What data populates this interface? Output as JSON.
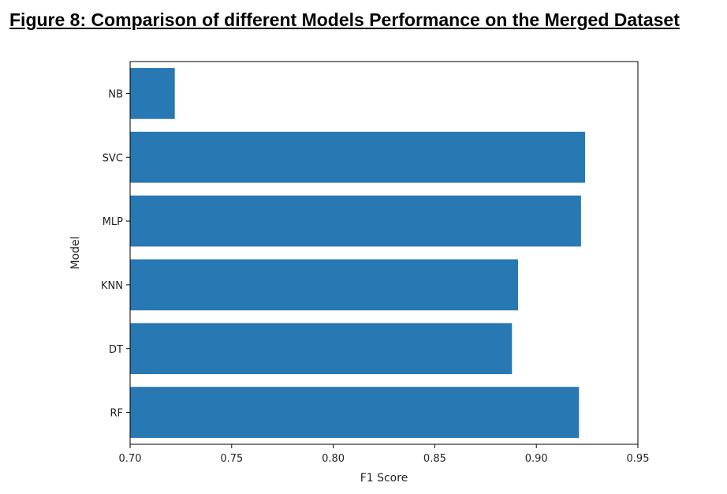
{
  "figure_title": "Figure 8: Comparison of different Models Performance on the Merged Dataset",
  "colors": {
    "bar": "#2878b4",
    "axis": "#000000",
    "background": "#ffffff"
  },
  "chart_data": {
    "type": "bar",
    "orientation": "horizontal",
    "title": "",
    "xlabel": "F1 Score",
    "ylabel": "Model",
    "categories": [
      "RF",
      "DT",
      "KNN",
      "MLP",
      "SVC",
      "NB"
    ],
    "values": [
      0.921,
      0.888,
      0.891,
      0.922,
      0.924,
      0.722
    ],
    "xlim": [
      0.7,
      0.95
    ],
    "xticks": [
      "0.70",
      "0.75",
      "0.80",
      "0.85",
      "0.90",
      "0.95"
    ],
    "grid": false,
    "legend": "none"
  }
}
